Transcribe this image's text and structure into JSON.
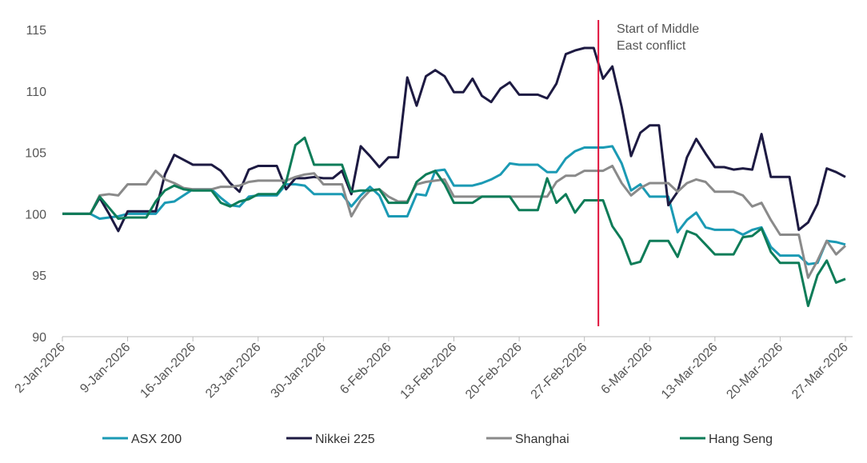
{
  "chart_data": {
    "type": "line",
    "title": "",
    "xlabel": "",
    "ylabel": "",
    "x_start": "2-Jan-2026",
    "x_end": "27-Mar-2026",
    "x_frequency": "daily",
    "x_tick_labels": [
      "2-Jan-2026",
      "9-Jan-2026",
      "16-Jan-2026",
      "23-Jan-2026",
      "30-Jan-2026",
      "6-Feb-2026",
      "13-Feb-2026",
      "20-Feb-2026",
      "27-Feb-2026",
      "6-Mar-2026",
      "13-Mar-2026",
      "20-Mar-2026",
      "27-Mar-2026"
    ],
    "ylim": [
      90,
      115
    ],
    "y_ticks": [
      "90",
      "95",
      "100",
      "105",
      "110",
      "115"
    ],
    "grid": false,
    "legend_position": "bottom",
    "annotation": {
      "text_lines": [
        "Start of Middle",
        "East conflict"
      ],
      "date": "28-Feb-2026",
      "color": "#e0103a"
    },
    "series": [
      {
        "name": "ASX 200",
        "color": "#1b9ab4",
        "values": [
          100,
          100,
          100,
          100,
          99.6,
          99.7,
          99.8,
          100,
          100,
          100,
          100,
          100.9,
          101,
          101.5,
          102,
          102,
          102,
          101.3,
          100.7,
          100.6,
          101.4,
          101.5,
          101.5,
          101.5,
          102.4,
          102.4,
          102.3,
          101.6,
          101.6,
          101.6,
          101.6,
          100.6,
          101.5,
          102.2,
          101.5,
          99.8,
          99.8,
          99.8,
          101.6,
          101.5,
          103.5,
          103.6,
          102.3,
          102.3,
          102.3,
          102.5,
          102.8,
          103.2,
          104.1,
          104,
          104,
          104,
          103.4,
          103.4,
          104.5,
          105.1,
          105.4,
          105.4,
          105.4,
          105.5,
          104.1,
          101.9,
          102.4,
          101.4,
          101.4,
          101.4,
          98.5,
          99.5,
          100.1,
          98.9,
          98.7,
          98.7,
          98.7,
          98.3,
          98.7,
          98.9,
          97.3,
          96.6,
          96.6,
          96.6,
          95.9,
          96,
          97.8,
          97.7,
          97.5
        ]
      },
      {
        "name": "Nikkei 225",
        "color": "#1d1a42",
        "values": [
          100,
          100,
          100,
          100,
          101.3,
          100,
          98.6,
          100.2,
          100.2,
          100.2,
          100.2,
          103.2,
          104.8,
          104.4,
          104,
          104,
          104,
          103.5,
          102.5,
          101.8,
          103.6,
          103.9,
          103.9,
          103.9,
          102,
          102.9,
          102.9,
          103,
          102.9,
          102.9,
          103.5,
          101.6,
          105.5,
          104.7,
          103.8,
          104.6,
          104.6,
          111.1,
          108.8,
          111.2,
          111.7,
          111.2,
          109.9,
          109.9,
          111,
          109.6,
          109.1,
          110.2,
          110.7,
          109.7,
          109.7,
          109.7,
          109.4,
          110.6,
          113,
          113.3,
          113.5,
          113.5,
          111,
          112,
          108.7,
          104.7,
          106.6,
          107.2,
          107.2,
          100.7,
          101.8,
          104.6,
          106.1,
          104.9,
          103.8,
          103.8,
          103.6,
          103.7,
          103.6,
          106.5,
          103,
          103,
          103,
          98.7,
          99.3,
          100.8,
          103.7,
          103.4,
          103
        ]
      },
      {
        "name": "Shanghai",
        "color": "#8a8a8a",
        "values": [
          100,
          100,
          100,
          100,
          101.5,
          101.6,
          101.5,
          102.4,
          102.4,
          102.4,
          103.5,
          102.8,
          102.5,
          102.1,
          102,
          102,
          102,
          102.2,
          102.2,
          102.3,
          102.6,
          102.7,
          102.7,
          102.7,
          102.7,
          103,
          103.2,
          103.3,
          102.4,
          102.4,
          102.4,
          99.8,
          101.1,
          101.9,
          102,
          101.4,
          101,
          101,
          102.4,
          102.6,
          102.7,
          102.8,
          101.4,
          101.4,
          101.4,
          101.4,
          101.4,
          101.4,
          101.4,
          101.4,
          101.4,
          101.4,
          101.4,
          102.6,
          103.1,
          103.1,
          103.5,
          103.5,
          103.5,
          103.9,
          102.5,
          101.5,
          102.1,
          102.5,
          102.5,
          102.5,
          101.8,
          102.5,
          102.8,
          102.6,
          101.8,
          101.8,
          101.8,
          101.5,
          100.6,
          100.9,
          99.5,
          98.3,
          98.3,
          98.3,
          94.8,
          96.2,
          97.8,
          96.7,
          97.4
        ]
      },
      {
        "name": "Hang Seng",
        "color": "#0e7c58",
        "values": [
          100,
          100,
          100,
          100,
          101.4,
          100.5,
          99.6,
          99.7,
          99.7,
          99.7,
          101,
          101.9,
          102.3,
          102,
          101.9,
          101.9,
          101.9,
          100.9,
          100.6,
          101,
          101.2,
          101.6,
          101.6,
          101.6,
          102.6,
          105.6,
          106.2,
          104,
          104,
          104,
          104,
          101.8,
          101.9,
          101.9,
          102,
          100.9,
          100.9,
          100.9,
          102.6,
          103.2,
          103.5,
          102.4,
          100.9,
          100.9,
          100.9,
          101.4,
          101.4,
          101.4,
          101.4,
          100.3,
          100.3,
          100.3,
          102.9,
          100.9,
          101.6,
          100.1,
          101.1,
          101.1,
          101.1,
          99,
          97.9,
          95.9,
          96.1,
          97.8,
          97.8,
          97.8,
          96.5,
          98.6,
          98.3,
          97.5,
          96.7,
          96.7,
          96.7,
          98.1,
          98.2,
          98.8,
          96.9,
          96,
          96,
          96,
          92.5,
          95,
          96.2,
          94.4,
          94.7
        ]
      }
    ]
  }
}
